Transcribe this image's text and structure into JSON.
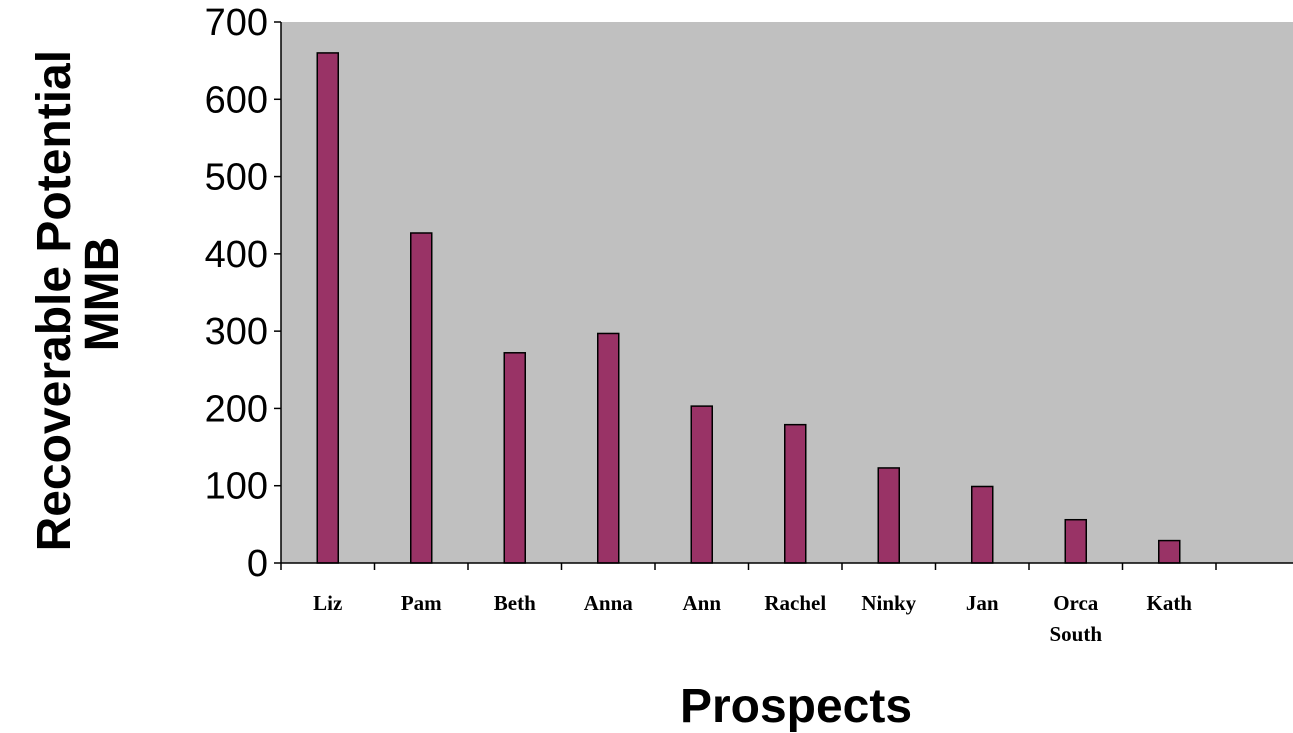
{
  "chart_data": {
    "type": "bar",
    "title": "",
    "xlabel": "Prospects",
    "ylabel_lines": [
      "Recoverable Potential",
      "MMB"
    ],
    "categories": [
      [
        "Liz"
      ],
      [
        "Pam"
      ],
      [
        "Beth"
      ],
      [
        "Anna"
      ],
      [
        "Ann"
      ],
      [
        "Rachel"
      ],
      [
        "Ninky"
      ],
      [
        "Jan"
      ],
      [
        "Orca",
        "South"
      ],
      [
        "Kath"
      ]
    ],
    "values": [
      660,
      427,
      272,
      297,
      203,
      179,
      123,
      99,
      56,
      29
    ],
    "ylim": [
      0,
      700
    ],
    "yticks": [
      "0",
      "100",
      "200",
      "300",
      "400",
      "500",
      "600",
      "700"
    ],
    "category_slots": 10,
    "slot_count": 10,
    "extra_empty_slots": 0,
    "colors": {
      "bar": "#993366",
      "plot_background": "#c0c0c0",
      "axis": "#000000"
    },
    "grid": false,
    "legend": "none"
  }
}
